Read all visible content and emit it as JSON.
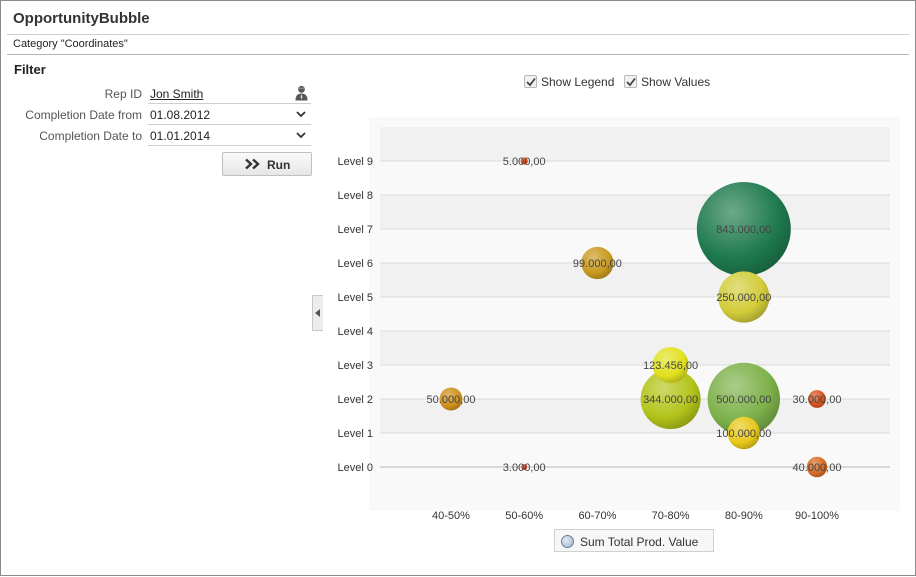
{
  "page": {
    "title": "OpportunityBubble",
    "category": "Category \"Coordinates\""
  },
  "filter": {
    "heading": "Filter",
    "rep_id": {
      "label": "Rep ID",
      "value": "Jon Smith",
      "icon": "person-icon"
    },
    "date_from": {
      "label": "Completion Date from",
      "value": "01.08.2012"
    },
    "date_to": {
      "label": "Completion Date to",
      "value": "01.01.2014"
    },
    "run_label": "Run"
  },
  "options": {
    "show_legend": {
      "label": "Show Legend",
      "checked": true
    },
    "show_values": {
      "label": "Show Values",
      "checked": true
    }
  },
  "chart_data": {
    "type": "bubble",
    "x_categories": [
      "40-50%",
      "50-60%",
      "60-70%",
      "70-80%",
      "80-90%",
      "90-100%"
    ],
    "y_categories": [
      "Level 0",
      "Level 1",
      "Level 2",
      "Level 3",
      "Level 4",
      "Level 5",
      "Level 6",
      "Level 7",
      "Level 8",
      "Level 9"
    ],
    "series_name": "Sum Total Prod. Value",
    "grid": true,
    "legend_position": "bottom-center",
    "points": [
      {
        "x": "50-60%",
        "y": "Level 9",
        "value": 5000,
        "label": "5.000,00",
        "color": "#d04a1c"
      },
      {
        "x": "80-90%",
        "y": "Level 7",
        "value": 843000,
        "label": "843.000,00",
        "color": "#1e7a4e"
      },
      {
        "x": "60-70%",
        "y": "Level 6",
        "value": 99000,
        "label": "99.000,00",
        "color": "#c99a1f"
      },
      {
        "x": "80-90%",
        "y": "Level 5",
        "value": 250000,
        "label": "250.000,00",
        "color": "#d2cc3a"
      },
      {
        "x": "70-80%",
        "y": "Level 3",
        "value": 123456,
        "label": "123.456,00",
        "color": "#e1e01e"
      },
      {
        "x": "40-50%",
        "y": "Level 2",
        "value": 50000,
        "label": "50.000,00",
        "color": "#d0901c"
      },
      {
        "x": "70-80%",
        "y": "Level 2",
        "value": 344000,
        "label": "344.000,00",
        "color": "#b2c41a"
      },
      {
        "x": "80-90%",
        "y": "Level 2",
        "value": 500000,
        "label": "500.000,00",
        "color": "#7db14a"
      },
      {
        "x": "90-100%",
        "y": "Level 2",
        "value": 30000,
        "label": "30.000,00",
        "color": "#d9541c"
      },
      {
        "x": "80-90%",
        "y": "Level 1",
        "value": 100000,
        "label": "100.000,00",
        "color": "#e7c81a"
      },
      {
        "x": "50-60%",
        "y": "Level 0",
        "value": 3000,
        "label": "3.000,00",
        "color": "#c9452a"
      },
      {
        "x": "90-100%",
        "y": "Level 0",
        "value": 40000,
        "label": "40.000,00",
        "color": "#d66a26"
      }
    ]
  }
}
